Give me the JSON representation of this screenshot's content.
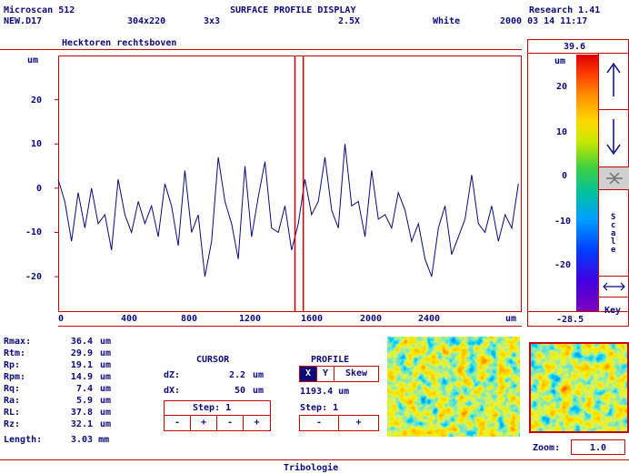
{
  "header": {
    "product": "Microscan 512",
    "title": "SURFACE PROFILE DISPLAY",
    "edition": "Research 1.41",
    "file": "NEW.D17",
    "size": "304x220",
    "filter": "3x3",
    "zoom_factor": "2.5X",
    "color_mode": "White",
    "datetime": "2000 03 14 11:17"
  },
  "profile_title": "Hecktoren rechtsboven",
  "chart_data": {
    "type": "line",
    "y_unit": "um",
    "yticks": [
      20,
      10,
      0,
      -10,
      -20
    ],
    "ylim": [
      -28,
      30
    ],
    "xticks": [
      "0",
      "400",
      "800",
      "1200",
      "1600",
      "2000",
      "2400"
    ],
    "x_unit": "um",
    "xlim": [
      0,
      2780
    ],
    "cursor_x": [
      1420,
      1470
    ],
    "series": [
      {
        "x": [
          0,
          40,
          80,
          120,
          160,
          200,
          240,
          280,
          320,
          360,
          400,
          440,
          480,
          520,
          560,
          600,
          640,
          680,
          720,
          760,
          800,
          840,
          880,
          920,
          960,
          1000,
          1040,
          1080,
          1120,
          1160,
          1200,
          1240,
          1280,
          1320,
          1360,
          1400,
          1440,
          1480,
          1520,
          1560,
          1600,
          1640,
          1680,
          1720,
          1760,
          1800,
          1840,
          1880,
          1920,
          1960,
          2000,
          2040,
          2080,
          2120,
          2160,
          2200,
          2240,
          2280,
          2320,
          2360,
          2400,
          2440,
          2480,
          2520,
          2560,
          2600,
          2640,
          2680,
          2720,
          2760
        ],
        "values": [
          2,
          -3,
          -12,
          -1,
          -9,
          0,
          -8,
          -6,
          -14,
          2,
          -6,
          -10,
          -3,
          -8,
          -4,
          -11,
          1,
          -4,
          -13,
          4,
          -10,
          -6,
          -20,
          -12,
          7,
          -3,
          -8,
          -16,
          5,
          -11,
          -2,
          6,
          -9,
          -10,
          -4,
          -14,
          -8,
          2,
          -6,
          -3,
          7,
          -5,
          -9,
          10,
          -4,
          -3,
          -11,
          4,
          -7,
          -6,
          -9,
          -1,
          -5,
          -12,
          -8,
          -16,
          -20,
          -9,
          -4,
          -15,
          -11,
          -7,
          3,
          -8,
          -10,
          -4,
          -12,
          -6,
          -9,
          1
        ]
      }
    ]
  },
  "legend": {
    "max_value": "39.6",
    "unit": "um",
    "ticks": [
      "20",
      "10",
      "0",
      "-10",
      "-20"
    ],
    "min_value": "-28.5",
    "scale_label": "Scale",
    "key_label": "Key"
  },
  "stats": [
    {
      "label": "Rmax:",
      "value": "36.4",
      "unit": "um"
    },
    {
      "label": "Rtm:",
      "value": "29.9",
      "unit": "um"
    },
    {
      "label": "Rp:",
      "value": "19.1",
      "unit": "um"
    },
    {
      "label": "Rpm:",
      "value": "14.9",
      "unit": "um"
    },
    {
      "label": "Rq:",
      "value": "7.4",
      "unit": "um"
    },
    {
      "label": "Ra:",
      "value": "5.9",
      "unit": "um"
    },
    {
      "label": "RL:",
      "value": "37.8",
      "unit": "um"
    },
    {
      "label": "Rz:",
      "value": "32.1",
      "unit": "um"
    }
  ],
  "length": {
    "label": "Length:",
    "value": "3.03 mm"
  },
  "cursor": {
    "title": "CURSOR",
    "dz_label": "dZ:",
    "dz_value": "2.2",
    "dz_unit": "um",
    "dx_label": "dX:",
    "dx_value": "50",
    "dx_unit": "um",
    "step": "Step: 1",
    "buttons": [
      "-",
      "+",
      "-",
      "+"
    ]
  },
  "profile": {
    "title": "PROFILE",
    "x_btn": "X",
    "y_btn": "Y",
    "skew_btn": "Skew",
    "position": "1193.4 um",
    "step": "Step: 1",
    "buttons": [
      "-",
      "+"
    ]
  },
  "zoom": {
    "label": "Zoom:",
    "value": "1.0"
  },
  "footer": "Tribologie"
}
